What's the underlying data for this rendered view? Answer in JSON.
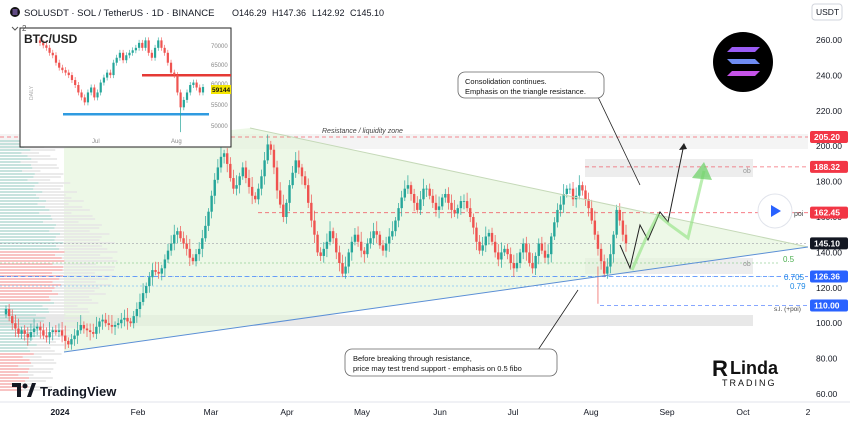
{
  "header": {
    "symbol": "SOLUSDT · SOL / TetherUS · 1D · BINANCE",
    "open": "O146.29",
    "high": "H147.36",
    "low": "L142.92",
    "close": "C145.10",
    "indicator_count": "2"
  },
  "currency_button": "USDT",
  "inset": {
    "title": "BTC/USD",
    "side_label": "DAILY",
    "price_ticks": [
      "70000",
      "65000",
      "60000",
      "55000",
      "50000"
    ],
    "time_ticks": [
      "Jul",
      "Aug"
    ],
    "price_tag": "59144"
  },
  "annotations": {
    "consolidation": [
      "Consolidation continues.",
      "Emphasis on the triangle resistance."
    ],
    "resistance_zone": "Resistance / liquidity zone",
    "trend_test": [
      "Before breaking through resistance,",
      "price may test trend support - emphasis on 0.5 fibo"
    ],
    "fib_05": "0.5",
    "fib_0705": "0.705",
    "fib_079": "0.79",
    "ob_upper": "ob",
    "ob_lower": "ob",
    "poi": "poi",
    "stop_loss": "s.l. (+poi)"
  },
  "brand": {
    "tradingview": "TradingView",
    "author_line1": "Linda",
    "author_line2": "TRADING"
  },
  "colors": {
    "up": "#26a69a",
    "down": "#ef5350",
    "red_tag": "#f23645",
    "blue_tag": "#2962ff",
    "dark_tag": "#131722",
    "trendline": "#5b8fd6",
    "arrow_green": "#5cd16a"
  },
  "chart_data": {
    "type": "candlestick",
    "symbol": "SOLUSDT",
    "timeframe": "1D",
    "x_labels": [
      "2024",
      "Feb",
      "Mar",
      "Apr",
      "May",
      "Jun",
      "Jul",
      "Aug",
      "Sep",
      "Oct",
      "2"
    ],
    "y_ticks": [
      260,
      240,
      220,
      200,
      180,
      160,
      140,
      120,
      100,
      80,
      60
    ],
    "ylim": [
      55,
      270
    ],
    "price_levels": [
      {
        "value": 205.2,
        "label": "205.20",
        "style": "red"
      },
      {
        "value": 188.32,
        "label": "188.32",
        "style": "red"
      },
      {
        "value": 162.45,
        "label": "162.45",
        "style": "red"
      },
      {
        "value": 145.1,
        "label": "145.10",
        "style": "dark"
      },
      {
        "value": 126.36,
        "label": "126.36",
        "style": "blue"
      },
      {
        "value": 110.0,
        "label": "110.00",
        "style": "blue"
      }
    ],
    "fib_levels": [
      {
        "label": "0.5",
        "value": 134
      },
      {
        "label": "0.705",
        "value": 126.36
      },
      {
        "label": "0.79",
        "value": 121
      }
    ],
    "closes": [
      108,
      104,
      100,
      97,
      94,
      96,
      94,
      92,
      95,
      97,
      98,
      96,
      93,
      92,
      95,
      96,
      95,
      96,
      93,
      90,
      88,
      91,
      93,
      96,
      99,
      97,
      96,
      95,
      94,
      98,
      101,
      102,
      100,
      99,
      98,
      99,
      100,
      102,
      103,
      101,
      100,
      104,
      108,
      112,
      117,
      121,
      126,
      130,
      129,
      128,
      131,
      136,
      141,
      145,
      150,
      152,
      148,
      145,
      142,
      137,
      135,
      139,
      142,
      148,
      155,
      163,
      172,
      181,
      188,
      194,
      196,
      190,
      182,
      176,
      178,
      183,
      188,
      182,
      177,
      172,
      170,
      176,
      183,
      192,
      201,
      198,
      188,
      175,
      167,
      160,
      168,
      178,
      185,
      192,
      188,
      183,
      178,
      168,
      158,
      150,
      140,
      138,
      142,
      146,
      152,
      148,
      140,
      134,
      128,
      132,
      140,
      146,
      150,
      146,
      141,
      139,
      145,
      148,
      152,
      150,
      144,
      141,
      145,
      149,
      152,
      158,
      165,
      171,
      176,
      178,
      173,
      168,
      164,
      170,
      176,
      176,
      172,
      168,
      164,
      166,
      171,
      173,
      168,
      164,
      162,
      165,
      169,
      169,
      165,
      160,
      154,
      146,
      141,
      144,
      149,
      151,
      146,
      140,
      136,
      140,
      142,
      139,
      134,
      131,
      134,
      140,
      145,
      140,
      134,
      131,
      138,
      145,
      141,
      137,
      139,
      149,
      157,
      164,
      167,
      173,
      176,
      176,
      170,
      172,
      178,
      175,
      170,
      165,
      158,
      150,
      142,
      135,
      128,
      132,
      139,
      150,
      164,
      158,
      150,
      145.1
    ]
  }
}
